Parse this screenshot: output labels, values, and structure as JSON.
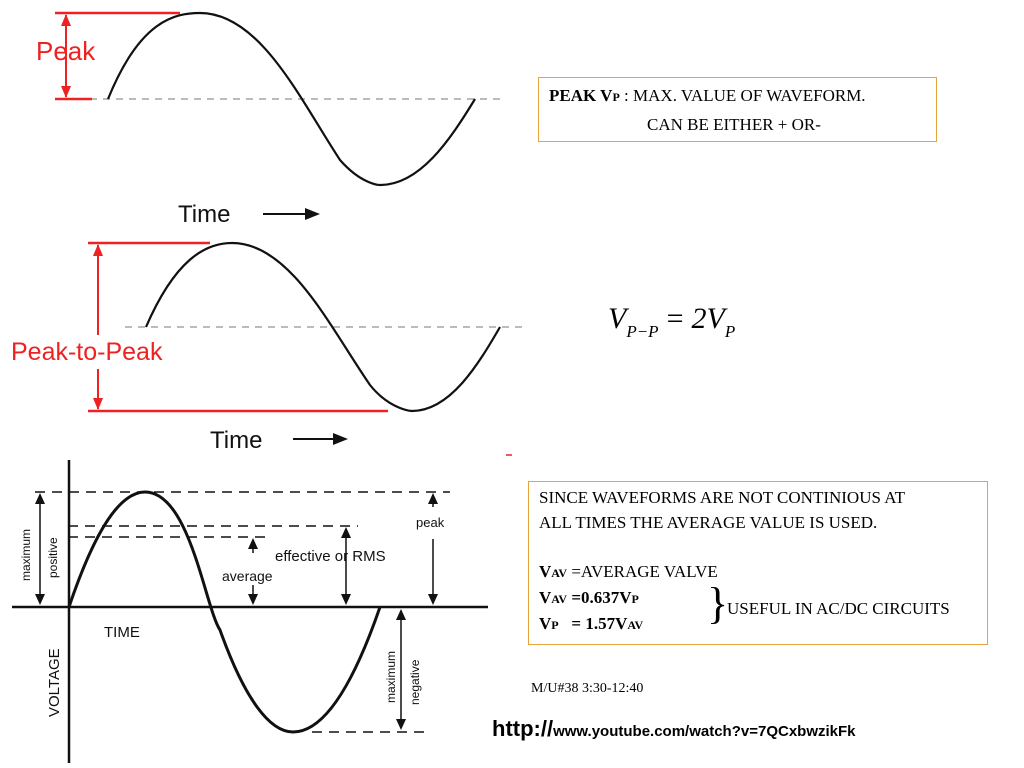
{
  "diagram1": {
    "label": "Peak",
    "axis_label": "Time"
  },
  "diagram2": {
    "label": "Peak-to-Peak",
    "axis_label": "Time"
  },
  "diagram3": {
    "ylabel": "VOLTAGE",
    "xlabel": "TIME",
    "label_max_positive_1": "maximum",
    "label_max_positive_2": "positive",
    "label_max_negative_1": "maximum",
    "label_max_negative_2": "negative",
    "label_peak": "peak",
    "label_rms": "effective or RMS",
    "label_average": "average"
  },
  "peak_note": {
    "term": "PEAK V",
    "term_sub": "P",
    "definition": " : MAX. VALUE OF WAVEFORM.",
    "line2": "CAN BE EITHER + OR-"
  },
  "formula": {
    "lhs": "V",
    "lhs_sub": "P−P",
    "eq": "=",
    "rhs": "2V",
    "rhs_sub": "P"
  },
  "avg_note": {
    "line1": "SINCE WAVEFORMS ARE NOT CONTINIOUS AT",
    "line2": "ALL TIMES THE AVERAGE VALUE IS USED.",
    "f1_v": "V",
    "f1_sub": "AV",
    "f1_rest": " =AVERAGE VALVE",
    "f2_v": "V",
    "f2_sub": "AV",
    "f2_eq": " =",
    "f2_val": "0.637V",
    "f2_val_sub": "P",
    "f3_v": "V",
    "f3_sub": "P",
    "f3_eq": "   = ",
    "f3_val": "1.57V",
    "f3_val_sub": "AV",
    "brace": "}",
    "brace_text": "USEFUL IN AC/DC CIRCUITS"
  },
  "reference": {
    "time": "M/U#38 3:30-12:40",
    "url_proto": "http://",
    "url_rest": "www.youtube.com/watch?v=7QCxbwzikFk"
  },
  "colors": {
    "accent_red": "#ee2222",
    "box_border": "#e8a33a",
    "dashed_gray": "#bbbbbb"
  }
}
